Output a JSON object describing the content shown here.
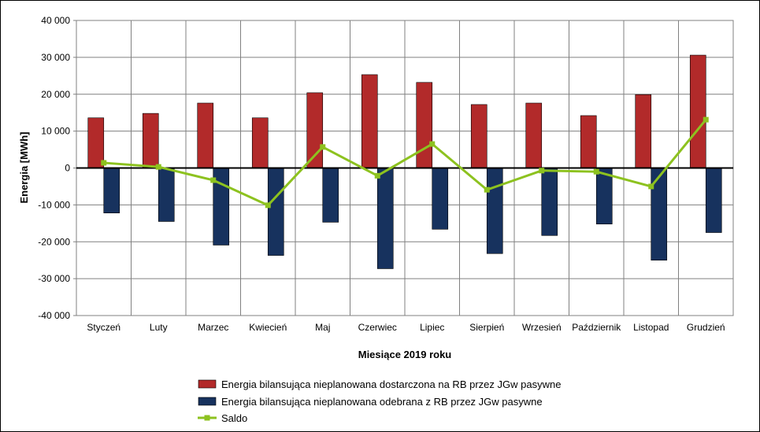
{
  "chart_data": {
    "type": "bar",
    "xlabel": "Miesiące 2019  roku",
    "ylabel": "Energia [MWh]",
    "ylim": [
      -40000,
      40000
    ],
    "yticks": [
      40000,
      30000,
      20000,
      10000,
      0,
      -10000,
      -20000,
      -30000,
      -40000
    ],
    "ytick_labels": [
      "40 000",
      "30 000",
      "20 000",
      "10 000",
      "0",
      "-10 000",
      "-20 000",
      "-30 000",
      "-40 000"
    ],
    "grid": true,
    "legend_position": "bottom",
    "categories": [
      "Styczeń",
      "Luty",
      "Marzec",
      "Kwiecień",
      "Maj",
      "Czerwiec",
      "Lipiec",
      "Sierpień",
      "Wrzesień",
      "Październik",
      "Listopad",
      "Grudzień"
    ],
    "series": [
      {
        "name": "Energia bilansująca nieplanowana dostarczona na RB przez JGw pasywne",
        "type": "bar",
        "color": "#b22a2a",
        "values": [
          13600,
          14800,
          17600,
          13600,
          20400,
          25300,
          23200,
          17200,
          17600,
          14200,
          19900,
          30600
        ]
      },
      {
        "name": "Energia bilansująca nieplanowana odebrana z RB przez JGw pasywne",
        "type": "bar",
        "color": "#17325e",
        "values": [
          -12200,
          -14500,
          -20900,
          -23700,
          -14700,
          -27300,
          -16600,
          -23200,
          -18300,
          -15200,
          -25000,
          -17500
        ]
      },
      {
        "name": "Saldo",
        "type": "line",
        "color": "#8dc21f",
        "values": [
          1400,
          300,
          -3300,
          -10100,
          5700,
          -2100,
          6500,
          -5900,
          -700,
          -1000,
          -5000,
          13100
        ]
      }
    ]
  }
}
